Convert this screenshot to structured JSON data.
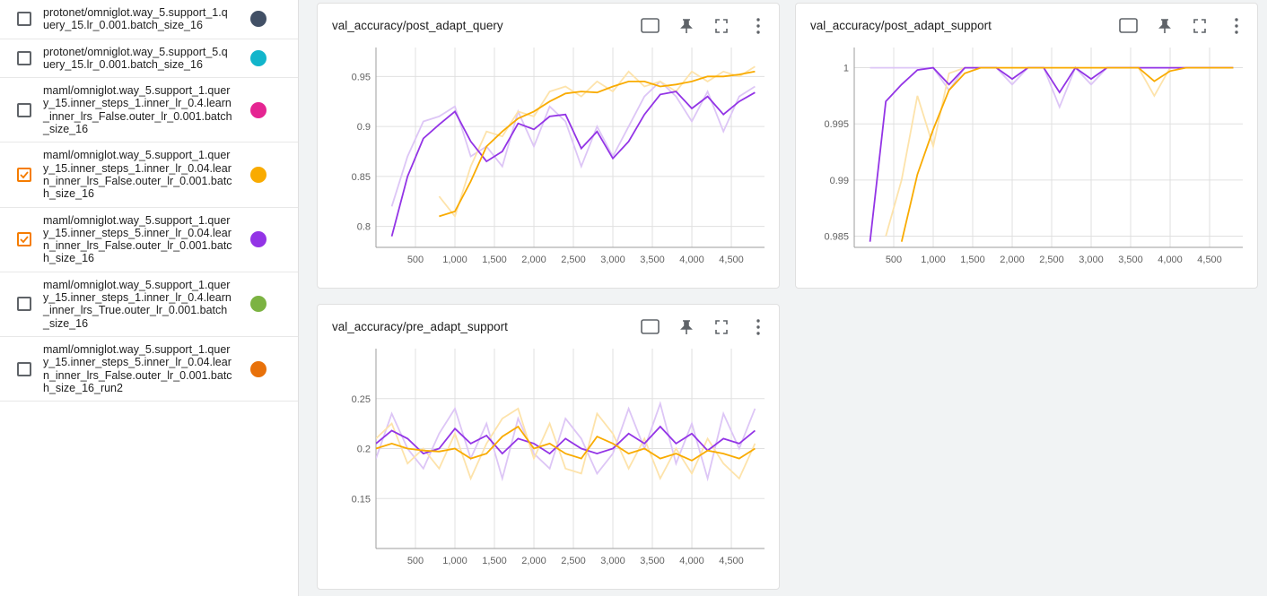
{
  "runs": [
    {
      "label": "protonet/omniglot.way_5.support_1.query_15.lr_0.001.batch_size_16",
      "color": "#425066",
      "checked": false
    },
    {
      "label": "protonet/omniglot.way_5.support_5.query_15.lr_0.001.batch_size_16",
      "color": "#12b5cb",
      "checked": false
    },
    {
      "label": "maml/omniglot.way_5.support_1.query_15.inner_steps_1.inner_lr_0.4.learn_inner_lrs_False.outer_lr_0.001.batch_size_16",
      "color": "#e52592",
      "checked": false
    },
    {
      "label": "maml/omniglot.way_5.support_1.query_15.inner_steps_1.inner_lr_0.04.learn_inner_lrs_False.outer_lr_0.001.batch_size_16",
      "color": "#f9ab00",
      "checked": true
    },
    {
      "label": "maml/omniglot.way_5.support_1.query_15.inner_steps_5.inner_lr_0.04.learn_inner_lrs_False.outer_lr_0.001.batch_size_16",
      "color": "#9334e6",
      "checked": true
    },
    {
      "label": "maml/omniglot.way_5.support_1.query_15.inner_steps_1.inner_lr_0.4.learn_inner_lrs_True.outer_lr_0.001.batch_size_16",
      "color": "#7cb342",
      "checked": false
    },
    {
      "label": "maml/omniglot.way_5.support_1.query_15.inner_steps_5.inner_lr_0.04.learn_inner_lrs_False.outer_lr_0.001.batch_size_16_run2",
      "color": "#e8710a",
      "checked": false
    }
  ],
  "chart_data": [
    {
      "type": "line",
      "title": "val_accuracy/post_adapt_query",
      "x": [
        0,
        200,
        400,
        600,
        800,
        1000,
        1200,
        1400,
        1600,
        1800,
        2000,
        2200,
        2400,
        2600,
        2800,
        3000,
        3200,
        3400,
        3600,
        3800,
        4000,
        4200,
        4400,
        4600,
        4800
      ],
      "xlim": [
        0,
        4920
      ],
      "xticks": [
        500,
        {
          "value": 1000,
          "label": "1,000"
        },
        {
          "value": 1500,
          "label": "1,500"
        },
        {
          "value": 2000,
          "label": "2,000"
        },
        {
          "value": 2500,
          "label": "2,500"
        },
        {
          "value": 3000,
          "label": "3,000"
        },
        {
          "value": 3500,
          "label": "3,500"
        },
        {
          "value": 4000,
          "label": "4,000"
        },
        {
          "value": 4500,
          "label": "4,500"
        }
      ],
      "ylim": [
        0.779,
        0.979
      ],
      "yticks": [
        0.8,
        0.85,
        0.9,
        0.95
      ],
      "grid": true,
      "series": [
        {
          "color": "#ddc6f6",
          "values": [
            null,
            0.82,
            0.87,
            0.905,
            0.91,
            0.92,
            0.87,
            0.88,
            0.86,
            0.915,
            0.88,
            0.92,
            0.905,
            0.86,
            0.9,
            0.87,
            0.9,
            0.93,
            0.945,
            0.93,
            0.905,
            0.935,
            0.895,
            0.93,
            0.94
          ]
        },
        {
          "color": "#fde3ab",
          "values": [
            null,
            null,
            null,
            null,
            0.83,
            0.81,
            0.86,
            0.895,
            0.89,
            0.915,
            0.91,
            0.935,
            0.94,
            0.93,
            0.945,
            0.935,
            0.955,
            0.94,
            0.945,
            0.935,
            0.955,
            0.945,
            0.955,
            0.95,
            0.96
          ]
        },
        {
          "color": "#9334e6",
          "values": [
            null,
            0.79,
            0.85,
            0.888,
            0.902,
            0.915,
            0.885,
            0.865,
            0.875,
            0.903,
            0.897,
            0.91,
            0.912,
            0.878,
            0.895,
            0.868,
            0.885,
            0.912,
            0.932,
            0.935,
            0.918,
            0.93,
            0.912,
            0.925,
            0.934
          ]
        },
        {
          "color": "#f9ab00",
          "values": [
            null,
            null,
            null,
            null,
            0.81,
            0.815,
            0.845,
            0.88,
            0.895,
            0.908,
            0.915,
            0.925,
            0.933,
            0.935,
            0.934,
            0.94,
            0.945,
            0.945,
            0.94,
            0.942,
            0.945,
            0.95,
            0.95,
            0.952,
            0.955
          ]
        }
      ]
    },
    {
      "type": "line",
      "title": "val_accuracy/post_adapt_support",
      "x": [
        0,
        200,
        400,
        600,
        800,
        1000,
        1200,
        1400,
        1600,
        1800,
        2000,
        2200,
        2400,
        2600,
        2800,
        3000,
        3200,
        3400,
        3600,
        3800,
        4000,
        4200,
        4400,
        4600,
        4800
      ],
      "xlim": [
        0,
        4920
      ],
      "xticks": [
        500,
        {
          "value": 1000,
          "label": "1,000"
        },
        {
          "value": 1500,
          "label": "1,500"
        },
        {
          "value": 2000,
          "label": "2,000"
        },
        {
          "value": 2500,
          "label": "2,500"
        },
        {
          "value": 3000,
          "label": "3,000"
        },
        {
          "value": 3500,
          "label": "3,500"
        },
        {
          "value": 4000,
          "label": "4,000"
        },
        {
          "value": 4500,
          "label": "4,500"
        }
      ],
      "ylim": [
        0.984,
        1.0018
      ],
      "yticks": [
        0.985,
        0.99,
        0.995,
        1
      ],
      "grid": true,
      "series": [
        {
          "color": "#ddc6f6",
          "values": [
            null,
            1,
            1,
            1,
            1,
            1,
            0.998,
            1,
            1,
            1,
            0.9985,
            1,
            1,
            0.9965,
            1,
            0.9985,
            1,
            1,
            1,
            1,
            1,
            1,
            1,
            1,
            1
          ]
        },
        {
          "color": "#fde3ab",
          "values": [
            null,
            null,
            0.985,
            0.99,
            0.9975,
            0.993,
            0.9995,
            1,
            1,
            1,
            1,
            1,
            1,
            1,
            1,
            1,
            1,
            1,
            1,
            0.9975,
            1,
            1,
            1,
            1,
            1
          ]
        },
        {
          "color": "#9334e6",
          "values": [
            null,
            0.9845,
            0.997,
            0.9985,
            0.9998,
            1,
            0.9985,
            1,
            1,
            1,
            0.999,
            1,
            1,
            0.9978,
            1,
            0.999,
            1,
            1,
            1,
            1,
            1,
            1,
            1,
            1,
            1
          ]
        },
        {
          "color": "#f9ab00",
          "values": [
            null,
            null,
            null,
            0.9845,
            0.9905,
            0.9945,
            0.998,
            0.9995,
            1,
            1,
            1,
            1,
            1,
            1,
            1,
            1,
            1,
            1,
            1,
            0.9988,
            0.9997,
            1,
            1,
            1,
            1
          ]
        }
      ]
    },
    {
      "type": "line",
      "title": "val_accuracy/pre_adapt_support",
      "x": [
        0,
        200,
        400,
        600,
        800,
        1000,
        1200,
        1400,
        1600,
        1800,
        2000,
        2200,
        2400,
        2600,
        2800,
        3000,
        3200,
        3400,
        3600,
        3800,
        4000,
        4200,
        4400,
        4600,
        4800
      ],
      "xlim": [
        0,
        4920
      ],
      "xticks": [
        500,
        {
          "value": 1000,
          "label": "1,000"
        },
        {
          "value": 1500,
          "label": "1,500"
        },
        {
          "value": 2000,
          "label": "2,000"
        },
        {
          "value": 2500,
          "label": "2,500"
        },
        {
          "value": 3000,
          "label": "3,000"
        },
        {
          "value": 3500,
          "label": "3,500"
        },
        {
          "value": 4000,
          "label": "4,000"
        },
        {
          "value": 4500,
          "label": "4,500"
        }
      ],
      "ylim": [
        0.1,
        0.3
      ],
      "yticks": [
        0.15,
        0.2,
        0.25
      ],
      "grid": true,
      "series": [
        {
          "color": "#ddc6f6",
          "values": [
            0.19,
            0.235,
            0.2,
            0.18,
            0.215,
            0.24,
            0.19,
            0.225,
            0.17,
            0.23,
            0.195,
            0.18,
            0.23,
            0.21,
            0.175,
            0.195,
            0.24,
            0.2,
            0.245,
            0.185,
            0.225,
            0.17,
            0.235,
            0.2,
            0.24
          ]
        },
        {
          "color": "#fde3ab",
          "values": [
            0.21,
            0.225,
            0.185,
            0.2,
            0.18,
            0.215,
            0.17,
            0.205,
            0.23,
            0.24,
            0.19,
            0.225,
            0.18,
            0.175,
            0.235,
            0.215,
            0.18,
            0.21,
            0.17,
            0.2,
            0.175,
            0.21,
            0.185,
            0.17,
            0.205
          ]
        },
        {
          "color": "#9334e6",
          "values": [
            0.205,
            0.218,
            0.21,
            0.195,
            0.2,
            0.22,
            0.205,
            0.213,
            0.195,
            0.21,
            0.205,
            0.195,
            0.21,
            0.2,
            0.195,
            0.2,
            0.215,
            0.205,
            0.222,
            0.205,
            0.215,
            0.198,
            0.21,
            0.205,
            0.218
          ]
        },
        {
          "color": "#f9ab00",
          "values": [
            0.2,
            0.205,
            0.2,
            0.198,
            0.197,
            0.2,
            0.19,
            0.195,
            0.212,
            0.222,
            0.2,
            0.205,
            0.195,
            0.19,
            0.212,
            0.205,
            0.195,
            0.2,
            0.19,
            0.195,
            0.188,
            0.198,
            0.195,
            0.19,
            0.2
          ]
        }
      ]
    }
  ]
}
